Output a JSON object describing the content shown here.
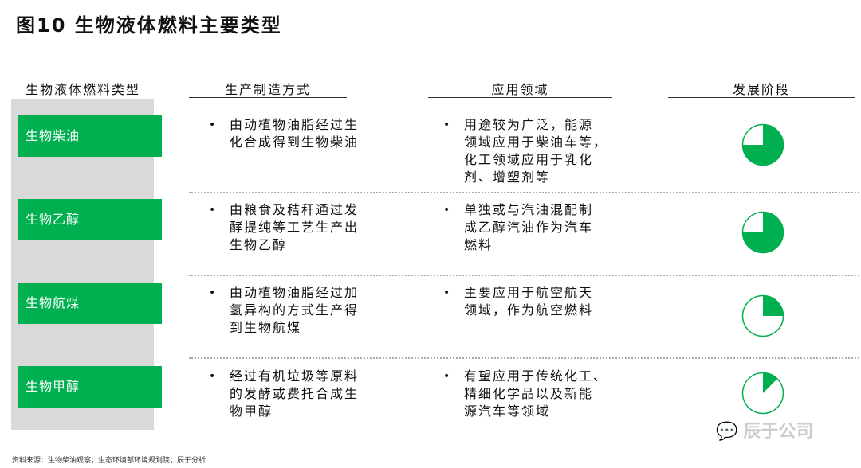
{
  "title": "图10 生物液体燃料主要类型",
  "headers": {
    "type": "生物液体燃料类型",
    "production": "生产制造方式",
    "application": "应用领域",
    "stage": "发展阶段"
  },
  "rows": [
    {
      "name": "生物柴油",
      "production": [
        "由动植物油脂经过生",
        "化合成得到生物柴油"
      ],
      "application": [
        "用途较为广泛，能源",
        "领域应用于柴油车等，",
        "化工领域应用于乳化",
        "剂、增塑剂等"
      ],
      "stage": 0.75
    },
    {
      "name": "生物乙醇",
      "production": [
        "由粮食及秸秆通过发",
        "酵提纯等工艺生产出",
        "生物乙醇"
      ],
      "application": [
        "单独或与汽油混配制",
        "成乙醇汽油作为汽车",
        "燃料"
      ],
      "stage": 0.75
    },
    {
      "name": "生物航煤",
      "production": [
        "由动植物油脂经过加",
        "氢异构的方式生产得",
        "到生物航煤"
      ],
      "application": [
        "主要应用于航空航天",
        "领域，作为航空燃料"
      ],
      "stage": 0.25
    },
    {
      "name": "生物甲醇",
      "production": [
        "经过有机垃圾等原料",
        "的发酵或费托合成生",
        "物甲醇"
      ],
      "application": [
        "有望应用于传统化工、",
        "精细化学品以及新能",
        "源汽车等领域"
      ],
      "stage": 0.125
    }
  ],
  "bullet": "•",
  "source": "资料来源：生物柴油观察；生态环境部环境规划院；辰于分析",
  "watermark": "辰于公司",
  "colors": {
    "accent": "#00b050",
    "panel": "#d9d9d9"
  }
}
